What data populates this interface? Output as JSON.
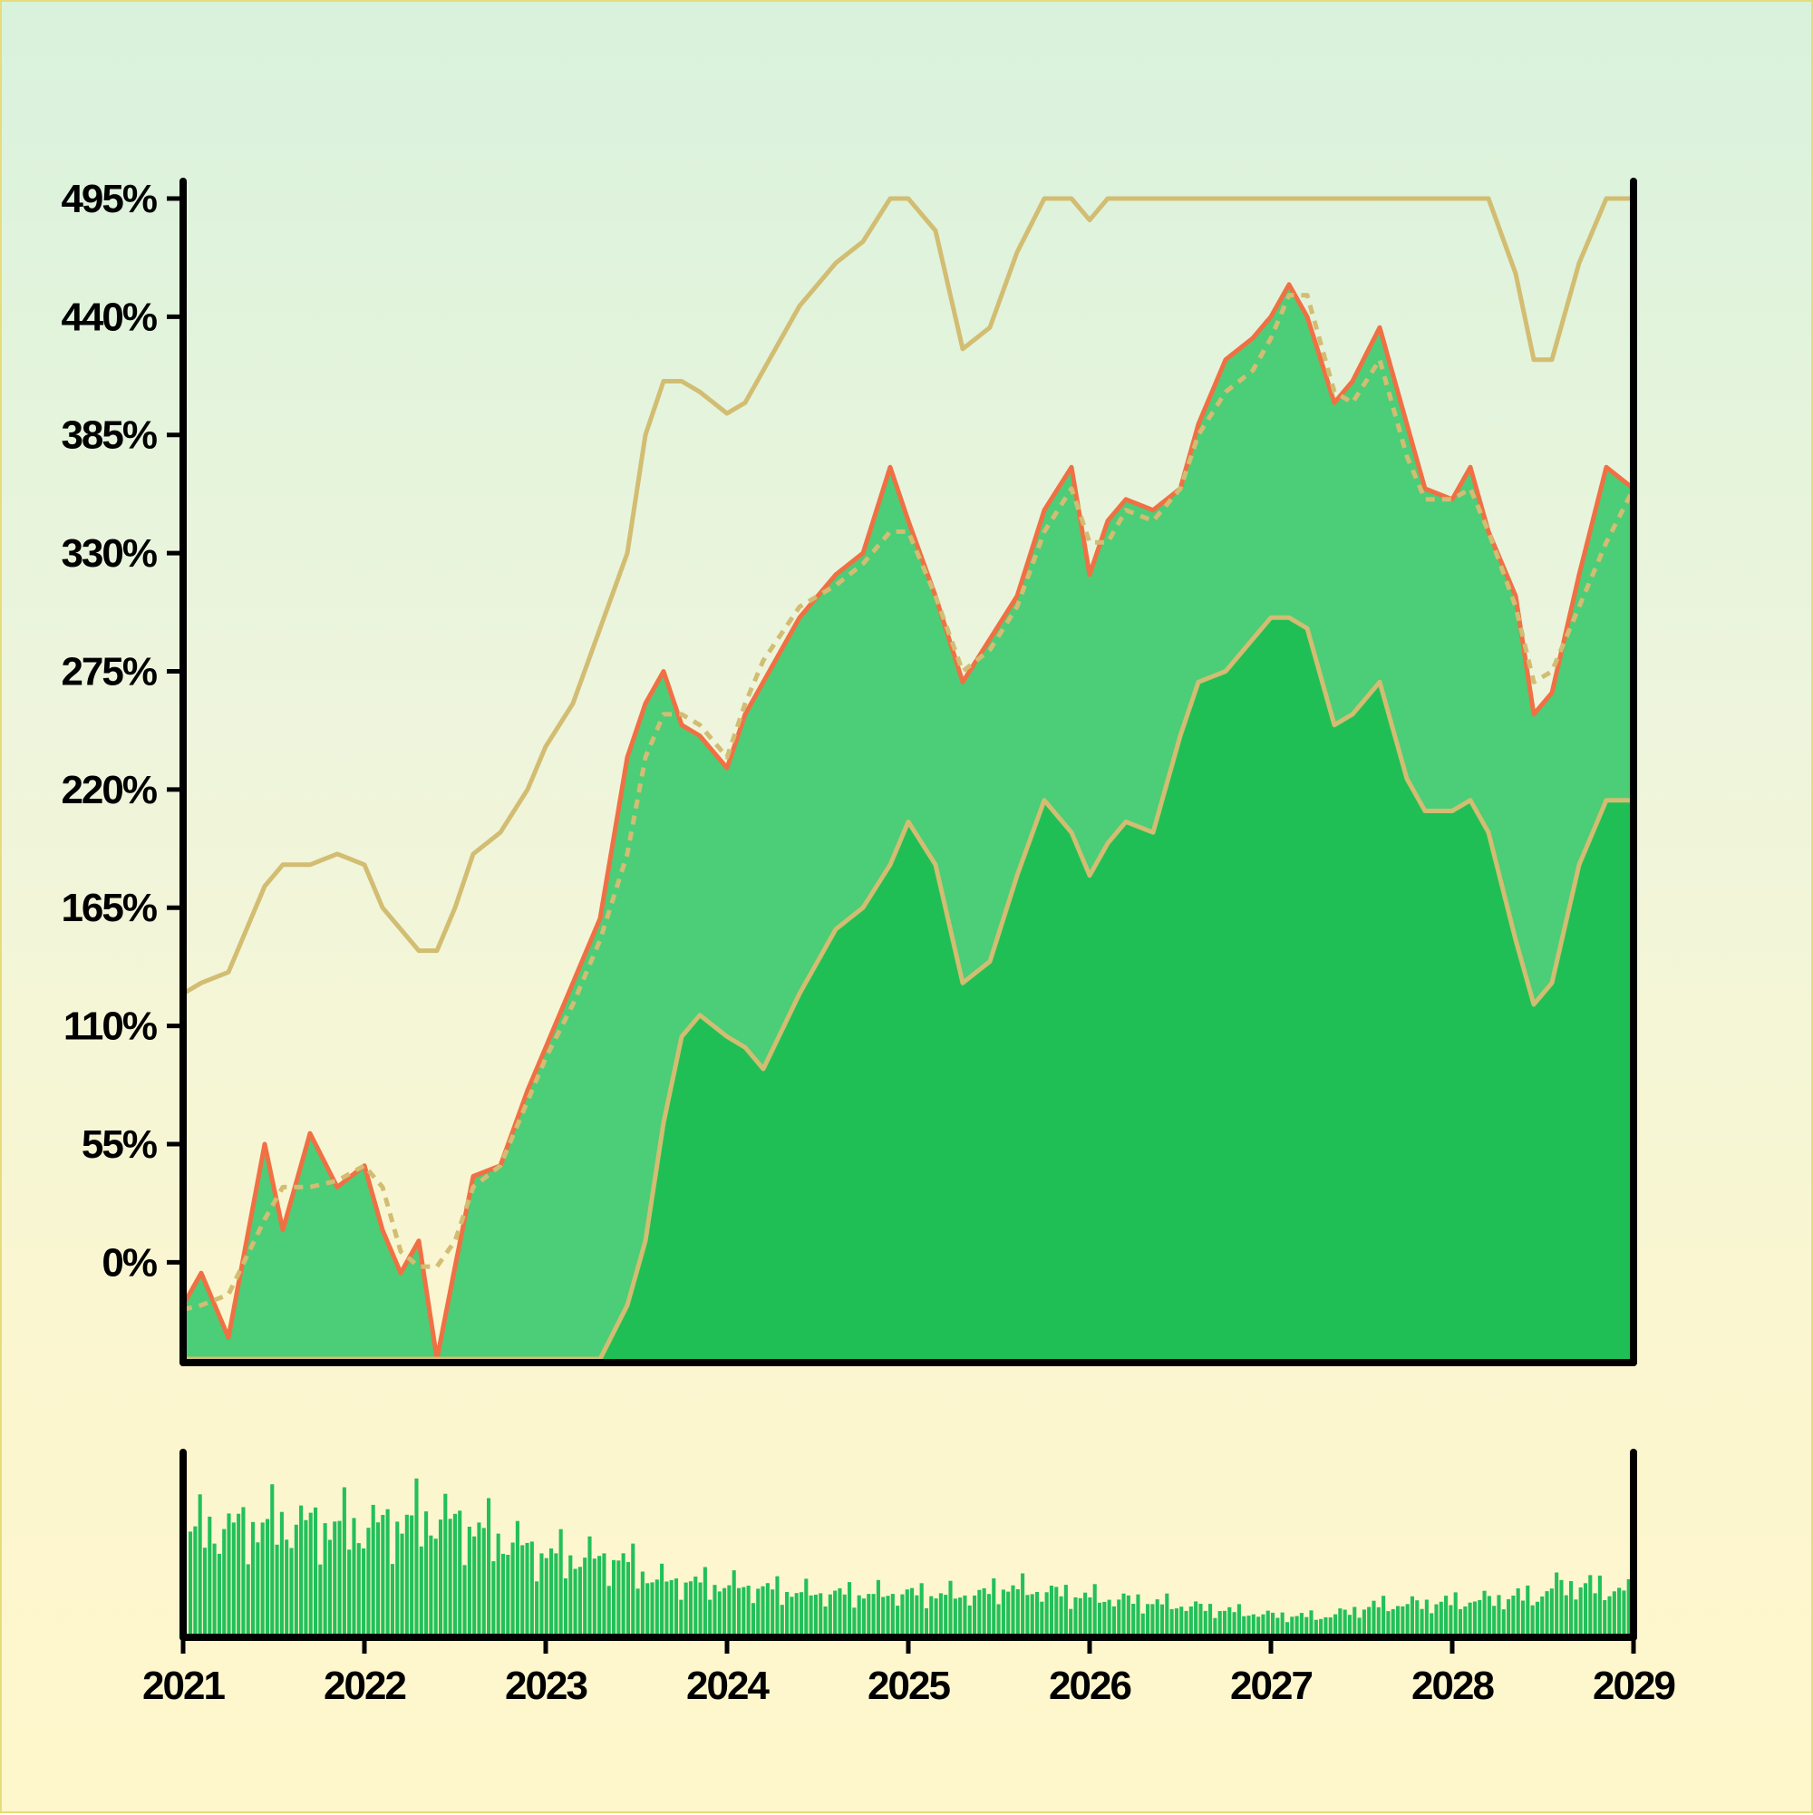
{
  "chart_data": {
    "type": "line",
    "title": "",
    "xlabel": "",
    "ylabel": "",
    "x_ticks": [
      "2021",
      "2022",
      "2023",
      "2024",
      "2025",
      "2026",
      "2027",
      "2028",
      "2029"
    ],
    "y_ticks": [
      "0%",
      "55%",
      "110%",
      "165%",
      "220%",
      "275%",
      "330%",
      "385%",
      "440%",
      "495%"
    ],
    "xlim": [
      2021,
      2029
    ],
    "ylim": [
      -45,
      503
    ],
    "grid": false,
    "legend": "none",
    "colors": {
      "price_line": "#f07044",
      "price_fill": "#4ccd78",
      "lower_band_fill": "#20bf55",
      "band_lines": "#d2bd72",
      "volume_bars": "#22c05a",
      "axes": "#000000"
    },
    "series": [
      {
        "role": "price",
        "style": "solid",
        "x": [
          2021.0,
          2021.1,
          2021.25,
          2021.45,
          2021.55,
          2021.7,
          2021.85,
          2022.0,
          2022.1,
          2022.2,
          2022.3,
          2022.4,
          2022.5,
          2022.6,
          2022.75,
          2022.9,
          2023.0,
          2023.15,
          2023.3,
          2023.45,
          2023.55,
          2023.65,
          2023.75,
          2023.85,
          2024.0,
          2024.1,
          2024.2,
          2024.4,
          2024.6,
          2024.75,
          2024.9,
          2025.0,
          2025.15,
          2025.3,
          2025.45,
          2025.6,
          2025.75,
          2025.9,
          2026.0,
          2026.1,
          2026.2,
          2026.35,
          2026.5,
          2026.6,
          2026.75,
          2026.9,
          2027.0,
          2027.1,
          2027.2,
          2027.35,
          2027.45,
          2027.6,
          2027.75,
          2027.85,
          2028.0,
          2028.1,
          2028.2,
          2028.35,
          2028.45,
          2028.55,
          2028.7,
          2028.85,
          2029.0
        ],
        "y": [
          -20,
          -5,
          -35,
          55,
          15,
          60,
          35,
          45,
          15,
          -5,
          10,
          -45,
          -2,
          40,
          45,
          80,
          100,
          130,
          160,
          235,
          260,
          275,
          250,
          245,
          230,
          255,
          270,
          300,
          320,
          330,
          370,
          345,
          310,
          270,
          290,
          310,
          350,
          370,
          320,
          345,
          355,
          350,
          360,
          390,
          420,
          430,
          440,
          455,
          440,
          400,
          410,
          435,
          390,
          360,
          355,
          370,
          340,
          310,
          255,
          265,
          320,
          370,
          360
        ]
      },
      {
        "role": "moving-average",
        "style": "dashed",
        "x": [
          2021.0,
          2021.1,
          2021.25,
          2021.45,
          2021.55,
          2021.7,
          2021.85,
          2022.0,
          2022.1,
          2022.2,
          2022.3,
          2022.4,
          2022.5,
          2022.6,
          2022.75,
          2022.9,
          2023.0,
          2023.15,
          2023.3,
          2023.45,
          2023.55,
          2023.65,
          2023.75,
          2023.85,
          2024.0,
          2024.1,
          2024.2,
          2024.4,
          2024.6,
          2024.75,
          2024.9,
          2025.0,
          2025.15,
          2025.3,
          2025.45,
          2025.6,
          2025.75,
          2025.9,
          2026.0,
          2026.1,
          2026.2,
          2026.35,
          2026.5,
          2026.6,
          2026.75,
          2026.9,
          2027.0,
          2027.1,
          2027.2,
          2027.35,
          2027.45,
          2027.6,
          2027.75,
          2027.85,
          2028.0,
          2028.1,
          2028.2,
          2028.35,
          2028.45,
          2028.55,
          2028.7,
          2028.85,
          2029.0
        ],
        "y": [
          -22,
          -20,
          -15,
          20,
          35,
          35,
          38,
          45,
          35,
          5,
          -2,
          -2,
          10,
          35,
          45,
          75,
          95,
          120,
          150,
          190,
          235,
          255,
          255,
          250,
          235,
          260,
          280,
          305,
          315,
          325,
          340,
          340,
          310,
          275,
          285,
          305,
          340,
          360,
          335,
          335,
          350,
          345,
          360,
          385,
          405,
          415,
          430,
          450,
          450,
          405,
          400,
          420,
          375,
          355,
          355,
          360,
          340,
          305,
          270,
          275,
          305,
          335,
          360
        ]
      },
      {
        "role": "upper-band",
        "style": "solid",
        "x": [
          2021.0,
          2021.1,
          2021.25,
          2021.45,
          2021.55,
          2021.7,
          2021.85,
          2022.0,
          2022.1,
          2022.2,
          2022.3,
          2022.4,
          2022.5,
          2022.6,
          2022.75,
          2022.9,
          2023.0,
          2023.15,
          2023.3,
          2023.45,
          2023.55,
          2023.65,
          2023.75,
          2023.85,
          2024.0,
          2024.1,
          2024.2,
          2024.4,
          2024.6,
          2024.75,
          2024.9,
          2025.0,
          2025.15,
          2025.3,
          2025.45,
          2025.6,
          2025.75,
          2025.9,
          2026.0,
          2026.1,
          2026.2,
          2026.35,
          2026.5,
          2026.6,
          2026.75,
          2026.9,
          2027.0,
          2027.1,
          2027.2,
          2027.35,
          2027.45,
          2027.6,
          2027.75,
          2027.85,
          2028.0,
          2028.1,
          2028.2,
          2028.35,
          2028.45,
          2028.55,
          2028.7,
          2028.85,
          2029.0
        ],
        "y": [
          125,
          130,
          135,
          175,
          185,
          185,
          190,
          185,
          165,
          155,
          145,
          145,
          165,
          190,
          200,
          220,
          240,
          260,
          295,
          330,
          385,
          410,
          410,
          405,
          395,
          400,
          415,
          445,
          465,
          475,
          495,
          495,
          480,
          425,
          435,
          470,
          495,
          495,
          485,
          495,
          495,
          495,
          495,
          495,
          495,
          495,
          495,
          495,
          495,
          495,
          495,
          495,
          495,
          495,
          495,
          495,
          495,
          460,
          420,
          420,
          465,
          495,
          495
        ]
      },
      {
        "role": "lower-band",
        "style": "solid",
        "x": [
          2021.0,
          2021.1,
          2021.25,
          2021.45,
          2021.55,
          2021.7,
          2021.85,
          2022.0,
          2022.1,
          2022.2,
          2022.3,
          2022.4,
          2022.5,
          2022.6,
          2022.75,
          2022.9,
          2023.0,
          2023.15,
          2023.3,
          2023.45,
          2023.55,
          2023.65,
          2023.75,
          2023.85,
          2024.0,
          2024.1,
          2024.2,
          2024.4,
          2024.6,
          2024.75,
          2024.9,
          2025.0,
          2025.15,
          2025.3,
          2025.45,
          2025.6,
          2025.75,
          2025.9,
          2026.0,
          2026.1,
          2026.2,
          2026.35,
          2026.5,
          2026.6,
          2026.75,
          2026.9,
          2027.0,
          2027.1,
          2027.2,
          2027.35,
          2027.45,
          2027.6,
          2027.75,
          2027.85,
          2028.0,
          2028.1,
          2028.2,
          2028.35,
          2028.45,
          2028.55,
          2028.7,
          2028.85,
          2029.0
        ],
        "y": [
          -45,
          -45,
          -45,
          -45,
          -45,
          -45,
          -45,
          -45,
          -45,
          -45,
          -45,
          -45,
          -45,
          -45,
          -45,
          -45,
          -45,
          -45,
          -45,
          -20,
          10,
          65,
          105,
          115,
          105,
          100,
          90,
          125,
          155,
          165,
          185,
          205,
          185,
          130,
          140,
          180,
          215,
          200,
          180,
          195,
          205,
          200,
          245,
          270,
          275,
          290,
          300,
          300,
          295,
          250,
          255,
          270,
          225,
          210,
          210,
          215,
          200,
          150,
          120,
          130,
          185,
          215,
          215
        ]
      }
    ],
    "volume": {
      "type": "bar",
      "x": [
        2021.0,
        2021.5,
        2022.0,
        2022.35,
        2022.5,
        2023.0,
        2023.4,
        2023.6,
        2024.0,
        2024.5,
        2025.0,
        2025.4,
        2025.5,
        2026.0,
        2026.5,
        2027.0,
        2027.3,
        2027.6,
        2028.0,
        2028.5,
        2028.6,
        2029.0
      ],
      "y": [
        0.72,
        0.78,
        0.75,
        0.82,
        0.78,
        0.55,
        0.52,
        0.38,
        0.34,
        0.28,
        0.28,
        0.27,
        0.33,
        0.26,
        0.2,
        0.13,
        0.12,
        0.2,
        0.22,
        0.27,
        0.35,
        0.3
      ]
    }
  }
}
